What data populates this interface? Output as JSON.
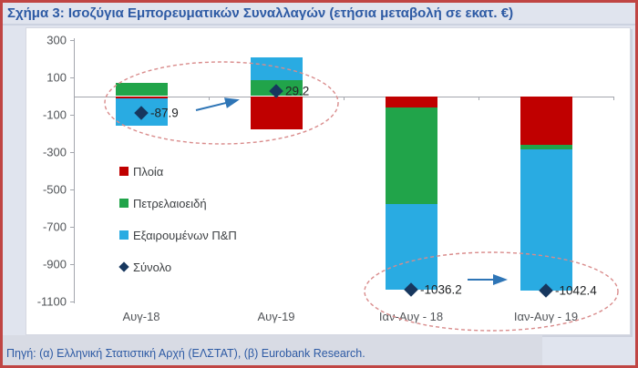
{
  "header": {
    "title": "Σχήμα 3: Ισοζύγια Εμπορευματικών Συναλλαγών (ετήσια μεταβολή σε εκατ. €)"
  },
  "footer": {
    "source": "Πηγή: (α) Ελληνική Στατιστική Αρχή (ΕΛΣΤΑΤ), (β) Eurobank Research."
  },
  "chart_data": {
    "type": "bar",
    "stacked": true,
    "title": "Σχήμα 3: Ισοζύγια Εμπορευματικών Συναλλαγών (ετήσια μεταβολή σε εκατ. €)",
    "categories": [
      "Αυγ-18",
      "Αυγ-19",
      "Ιαν-Αυγ - 18",
      "Ιαν-Αυγ - 19"
    ],
    "series": [
      {
        "name": "Πλοία",
        "color": "#c00000",
        "values": [
          -12,
          -179.8,
          -60,
          -260
        ]
      },
      {
        "name": "Πετρελαιοειδή",
        "color": "#21a44a",
        "values": [
          70,
          83,
          -520,
          -25
        ]
      },
      {
        "name": "Εξαιρουμένων Π&Π",
        "color": "#29abe2",
        "values": [
          -145.9,
          126,
          -456.2,
          -757.4
        ]
      }
    ],
    "markers": {
      "name": "Σύνολο",
      "color": "#17375e",
      "values": [
        -87.9,
        29.2,
        -1036.2,
        -1042.4
      ],
      "labels": [
        "-87.9",
        "29.2",
        "-1036.2",
        "-1042.4"
      ]
    },
    "ylim": [
      -1100,
      300
    ],
    "yticks": [
      300,
      100,
      -100,
      -300,
      -500,
      -700,
      -900,
      -1100
    ],
    "grid": false,
    "legend_position": "inside-left",
    "annotation_colors": {
      "ellipse": "#d98b8b",
      "arrow": "#2e75b6"
    }
  }
}
